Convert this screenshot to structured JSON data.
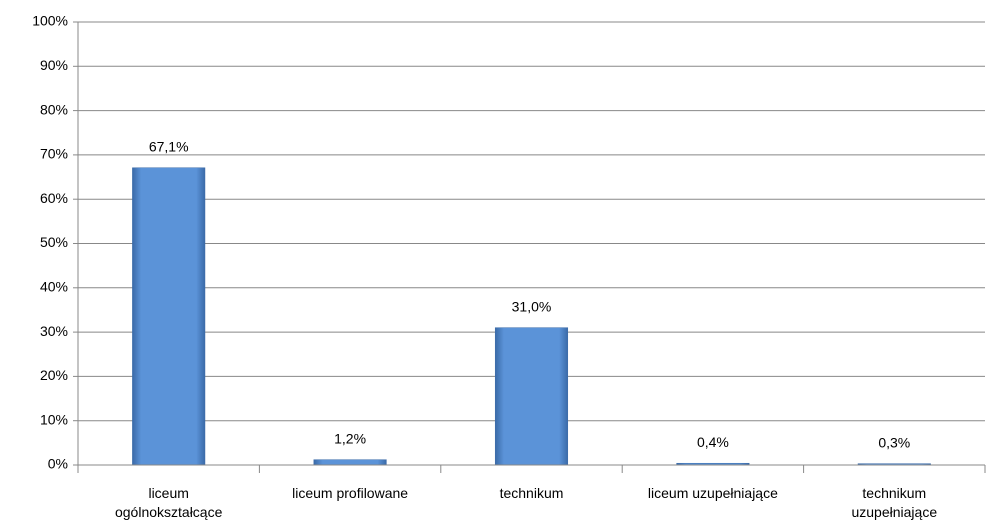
{
  "chart_data": {
    "type": "bar",
    "categories": [
      "liceum ogólnokształcące",
      "liceum profilowane",
      "technikum",
      "liceum uzupełniające",
      "technikum uzupełniające"
    ],
    "values": [
      67.1,
      1.2,
      31.0,
      0.4,
      0.3
    ],
    "value_labels": [
      "67,1%",
      "1,2%",
      "31,0%",
      "0,4%",
      "0,3%"
    ],
    "color": "#4f81bd",
    "ylim": [
      0,
      100
    ],
    "yticks": [
      {
        "value": 0,
        "label": "0%"
      },
      {
        "value": 10,
        "label": "10%"
      },
      {
        "value": 20,
        "label": "20%"
      },
      {
        "value": 30,
        "label": "30%"
      },
      {
        "value": 40,
        "label": "40%"
      },
      {
        "value": 50,
        "label": "50%"
      },
      {
        "value": 60,
        "label": "60%"
      },
      {
        "value": 70,
        "label": "70%"
      },
      {
        "value": 80,
        "label": "80%"
      },
      {
        "value": 90,
        "label": "90%"
      },
      {
        "value": 100,
        "label": "100%"
      }
    ],
    "grid": true
  }
}
